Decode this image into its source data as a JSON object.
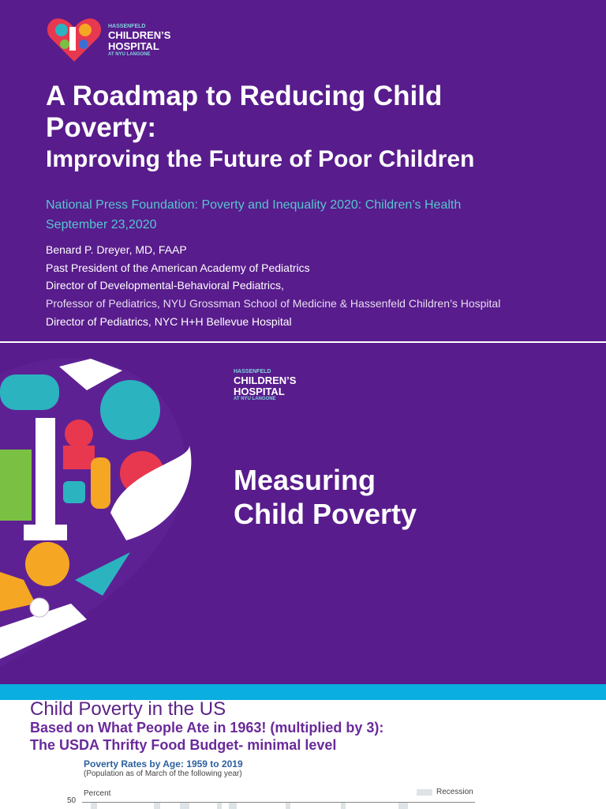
{
  "slide1": {
    "logo": {
      "line1": "HASSENFELD",
      "line2": "CHILDREN’S",
      "line3": "HOSPITAL",
      "line4": "AT NYU LANGONE"
    },
    "title": "A Roadmap to Reducing Child Poverty:",
    "subtitle": "Improving the Future of Poor Children",
    "event": "National Press Foundation: Poverty and Inequality 2020: Children’s Health",
    "date": "September 23,2020",
    "author": [
      "Benard P. Dreyer, MD, FAAP",
      "Past President of the American Academy of Pediatrics",
      "Director of Developmental-Behavioral Pediatrics,",
      "Professor of Pediatrics, NYU Grossman School of Medicine & Hassenfeld Children’s Hospital",
      "Director of Pediatrics, NYC H+H Bellevue Hospital"
    ]
  },
  "slide2": {
    "logo": {
      "line1": "HASSENFELD",
      "line2": "CHILDREN’S",
      "line3": "HOSPITAL",
      "line4": "AT NYU LANGONE"
    },
    "title": [
      "Measuring",
      "Child Poverty"
    ]
  },
  "slide3": {
    "title": "Child Poverty in the US",
    "subtitle": [
      "Based on What People Ate in 1963! (multiplied by 3):",
      "The USDA Thrifty Food Budget- minimal level"
    ],
    "figure": {
      "title": "Poverty Rates by Age: 1959 to 2019",
      "note": "(Population as of March of the following year)",
      "axis_label": "Percent",
      "legend": "Recession",
      "tick": "50"
    }
  }
}
